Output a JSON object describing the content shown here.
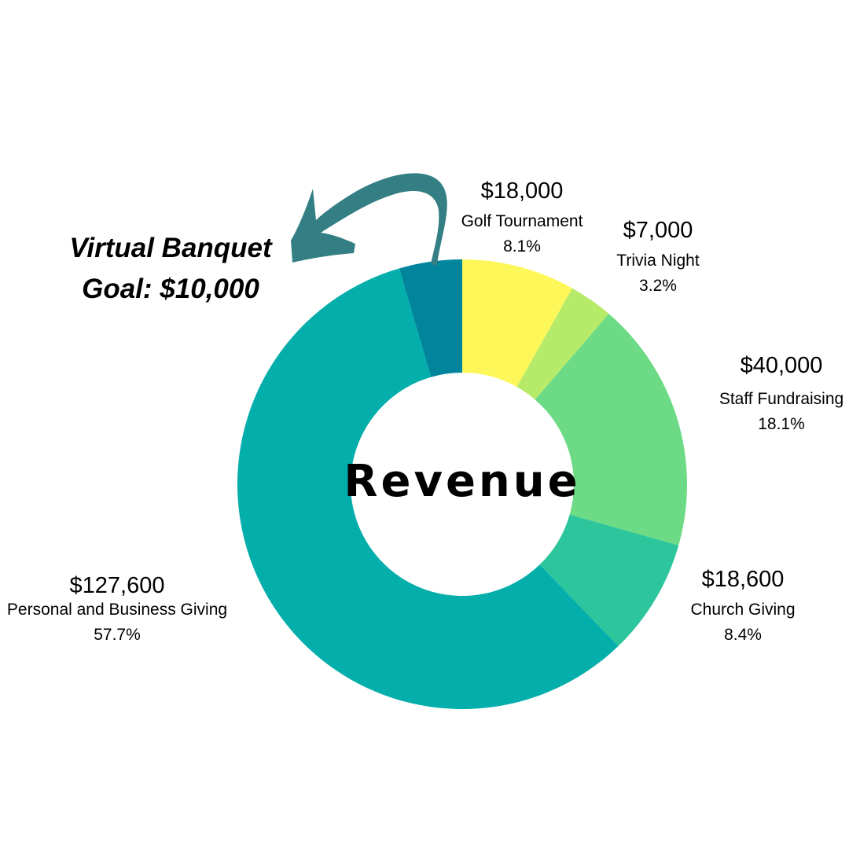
{
  "chart_data": {
    "type": "pie",
    "title": "Revenue",
    "slices": [
      {
        "label": "Golf Tournament",
        "amount_text": "$18,000",
        "percent_text": "8.1%",
        "value": 18000,
        "percent": 8.1,
        "color": "#FEF75A"
      },
      {
        "label": "Trivia Night",
        "amount_text": "$7,000",
        "percent_text": "3.2%",
        "value": 7000,
        "percent": 3.2,
        "color": "#B6EB6A"
      },
      {
        "label": "Staff Fundraising",
        "amount_text": "$40,000",
        "percent_text": "18.1%",
        "value": 40000,
        "percent": 18.1,
        "color": "#6DDB85"
      },
      {
        "label": "Church Giving",
        "amount_text": "$18,600",
        "percent_text": "8.4%",
        "value": 18600,
        "percent": 8.4,
        "color": "#2CC59C"
      },
      {
        "label": "Personal and Business Giving",
        "amount_text": "$127,600",
        "percent_text": "57.7%",
        "value": 127600,
        "percent": 57.7,
        "color": "#04AEAA"
      },
      {
        "label": "Virtual Banquet",
        "value": 10000,
        "percent": 4.5,
        "color": "#00859C"
      }
    ],
    "callout": {
      "line1": "Virtual Banquet",
      "line2": "Goal: $10,000"
    },
    "arrow_color": "#347F84",
    "legend": "none"
  }
}
